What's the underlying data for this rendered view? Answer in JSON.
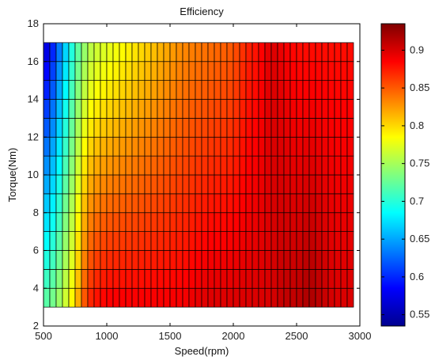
{
  "chart_data": {
    "type": "heatmap",
    "title": "Efficiency",
    "xlabel": "Speed(rpm)",
    "ylabel": "Torque(Nm)",
    "xlim": [
      500,
      3000
    ],
    "ylim": [
      2,
      18
    ],
    "x_ticks": [
      500,
      1000,
      1500,
      2000,
      2500,
      3000
    ],
    "y_ticks": [
      2,
      4,
      6,
      8,
      10,
      12,
      14,
      16,
      18
    ],
    "colorbar": {
      "range": [
        0.535,
        0.935
      ],
      "ticks": [
        0.55,
        0.6,
        0.65,
        0.7,
        0.75,
        0.8,
        0.85,
        0.9
      ],
      "colormap": "jet"
    },
    "grid": {
      "speed_range_rpm": [
        500,
        2950
      ],
      "torque_range_nm": [
        3,
        17
      ],
      "speed_step_rpm": 50,
      "torque_step_nm": 1
    },
    "efficiency_profile": {
      "speed_rpm": [
        500,
        550,
        600,
        650,
        700,
        750,
        800,
        850,
        900,
        1000,
        1100,
        1200,
        1300,
        1400,
        1500,
        1600,
        1800,
        2000,
        2100,
        2200,
        2300,
        2400,
        2500,
        2600,
        2700,
        2800,
        2950
      ],
      "efficiency_at_max_torque": [
        0.56,
        0.58,
        0.61,
        0.65,
        0.68,
        0.71,
        0.73,
        0.75,
        0.76,
        0.77,
        0.78,
        0.79,
        0.8,
        0.81,
        0.82,
        0.83,
        0.84,
        0.85,
        0.87,
        0.88,
        0.9,
        0.89,
        0.88,
        0.88,
        0.88,
        0.88,
        0.88
      ],
      "efficiency_at_min_torque": [
        0.72,
        0.73,
        0.74,
        0.76,
        0.78,
        0.8,
        0.84,
        0.87,
        0.88,
        0.89,
        0.89,
        0.89,
        0.89,
        0.89,
        0.89,
        0.89,
        0.9,
        0.9,
        0.9,
        0.9,
        0.9,
        0.91,
        0.91,
        0.92,
        0.91,
        0.9,
        0.9
      ]
    }
  }
}
